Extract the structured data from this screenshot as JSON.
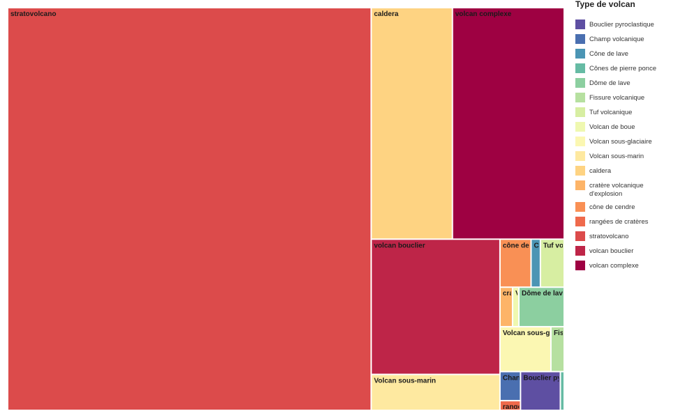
{
  "chart_data": {
    "type": "treemap",
    "title": "",
    "legend": {
      "title": "Type de volcan",
      "placement": "right",
      "items": [
        {
          "name": "Bouclier pyroclastique",
          "color": "#5e4fa2"
        },
        {
          "name": "Champ volcanique",
          "color": "#4a6fb0"
        },
        {
          "name": "Cône de lave",
          "color": "#4b95b4"
        },
        {
          "name": "Cônes de pierre ponce",
          "color": "#66bba4"
        },
        {
          "name": "Dôme de lave",
          "color": "#8ccfa0"
        },
        {
          "name": "Fissure volcanique",
          "color": "#b6e0a0"
        },
        {
          "name": "Tuf volcanique",
          "color": "#d7eea2"
        },
        {
          "name": "Volcan de boue",
          "color": "#eff8b0"
        },
        {
          "name": "Volcan sous-glaciaire",
          "color": "#fbf7b2"
        },
        {
          "name": "Volcan sous-marin",
          "color": "#fee9a0"
        },
        {
          "name": "caldera",
          "color": "#fed382"
        },
        {
          "name": "cratère volcanique d'explosion",
          "color": "#fdb468"
        },
        {
          "name": "cône de cendre",
          "color": "#f99055"
        },
        {
          "name": "rangées de cratères",
          "color": "#ef6a4c"
        },
        {
          "name": "stratovolcano",
          "color": "#dc4b4b"
        },
        {
          "name": "volcan bouclier",
          "color": "#be2548"
        },
        {
          "name": "volcan complexe",
          "color": "#9e0142"
        }
      ]
    },
    "tiles": [
      {
        "name": "stratovolcano",
        "label": "stratovolcano",
        "value": 294.2
      },
      {
        "name": "caldera",
        "label": "caldera",
        "value": 37.8
      },
      {
        "name": "volcan complexe",
        "label": "volcan complexe",
        "value": 52.0
      },
      {
        "name": "volcan bouclier",
        "label": "volcan bouclier",
        "value": 35.0
      },
      {
        "name": "Volcan sous-marin",
        "label": "Volcan sous-marin",
        "value": 9.3
      },
      {
        "name": "cône de cendre",
        "label": "cône de cer",
        "value": 3.0
      },
      {
        "name": "Cône de lave",
        "label": "C",
        "value": 0.9
      },
      {
        "name": "Tuf volcanique",
        "label": "Tuf volca",
        "value": 2.3
      },
      {
        "name": "cratère volcanique d'explosion",
        "label": "cra",
        "value": 1.0
      },
      {
        "name": "Volcan de boue",
        "label": "V",
        "value": 0.5
      },
      {
        "name": "Dôme de lave",
        "label": "Dôme de lave",
        "value": 3.6
      },
      {
        "name": "Volcan sous-glaciaire",
        "label": "Volcan sous-glacia",
        "value": 4.6
      },
      {
        "name": "Fissure volcanique",
        "label": "Fiss",
        "value": 1.2
      },
      {
        "name": "Champ volcanique",
        "label": "Chan",
        "value": 1.2
      },
      {
        "name": "rangées de cratères",
        "label": "range",
        "value": 0.4
      },
      {
        "name": "Bouclier pyroclastique",
        "label": "Bouclier pyrocla",
        "value": 3.1
      },
      {
        "name": "Cônes de pierre ponce",
        "label": "(",
        "value": 0.3
      }
    ]
  }
}
